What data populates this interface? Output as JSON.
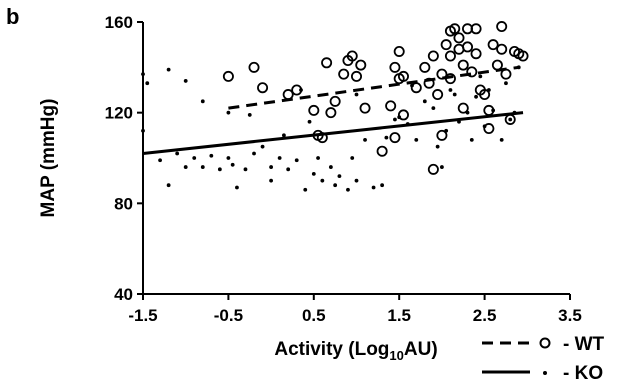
{
  "panel_label": "b",
  "chart_data": {
    "type": "scatter",
    "xlabel": "Activity (Log",
    "xlabel_sub": "10",
    "xlabel_suffix": "AU)",
    "ylabel": "MAP (mmHg)",
    "xlim": [
      -1.5,
      3.5
    ],
    "ylim": [
      40,
      160
    ],
    "xticks": [
      "-1.5",
      "-0.5",
      "0.5",
      "1.5",
      "2.5",
      "3.5"
    ],
    "yticks": [
      "40",
      "80",
      "120",
      "160"
    ],
    "grid": false,
    "legend_position": "bottom-right",
    "series": [
      {
        "name": "WT",
        "legend_label": "- WT",
        "marker": "open-circle",
        "line_style": "dashed",
        "fit_line": [
          [
            -0.5,
            122
          ],
          [
            2.9,
            140
          ]
        ],
        "points": [
          [
            -0.5,
            136
          ],
          [
            -0.2,
            140
          ],
          [
            -0.1,
            131
          ],
          [
            0.2,
            128
          ],
          [
            0.3,
            130
          ],
          [
            0.5,
            121
          ],
          [
            0.55,
            110
          ],
          [
            0.6,
            109
          ],
          [
            0.65,
            142
          ],
          [
            0.7,
            120
          ],
          [
            0.75,
            125
          ],
          [
            0.85,
            137
          ],
          [
            0.9,
            143
          ],
          [
            0.95,
            145
          ],
          [
            1.05,
            141
          ],
          [
            1.0,
            136
          ],
          [
            1.1,
            122
          ],
          [
            1.3,
            103
          ],
          [
            1.4,
            123
          ],
          [
            1.45,
            140
          ],
          [
            1.5,
            147
          ],
          [
            1.45,
            109
          ],
          [
            1.5,
            135
          ],
          [
            1.55,
            119
          ],
          [
            1.7,
            131
          ],
          [
            1.8,
            140
          ],
          [
            1.85,
            133
          ],
          [
            1.9,
            145
          ],
          [
            1.9,
            95
          ],
          [
            1.95,
            128
          ],
          [
            2.0,
            110
          ],
          [
            2.0,
            137
          ],
          [
            2.05,
            150
          ],
          [
            2.1,
            156
          ],
          [
            2.15,
            157
          ],
          [
            2.1,
            145
          ],
          [
            2.2,
            153
          ],
          [
            2.2,
            148
          ],
          [
            2.25,
            141
          ],
          [
            2.3,
            157
          ],
          [
            2.3,
            149
          ],
          [
            2.35,
            138
          ],
          [
            2.4,
            157
          ],
          [
            2.4,
            146
          ],
          [
            2.45,
            130
          ],
          [
            2.5,
            128
          ],
          [
            2.55,
            121
          ],
          [
            2.55,
            113
          ],
          [
            2.6,
            150
          ],
          [
            2.65,
            141
          ],
          [
            2.7,
            158
          ],
          [
            2.7,
            148
          ],
          [
            2.75,
            137
          ],
          [
            2.8,
            117
          ],
          [
            2.85,
            147
          ],
          [
            2.9,
            146
          ],
          [
            2.95,
            145
          ],
          [
            2.1,
            135
          ],
          [
            2.25,
            122
          ],
          [
            1.55,
            136
          ]
        ]
      },
      {
        "name": "KO",
        "legend_label": "- KO",
        "marker": "dot",
        "line_style": "solid",
        "fit_line": [
          [
            -1.5,
            102
          ],
          [
            2.95,
            120
          ]
        ],
        "points": [
          [
            -1.5,
            137
          ],
          [
            -1.45,
            133
          ],
          [
            -1.5,
            112
          ],
          [
            -1.3,
            99
          ],
          [
            -1.2,
            88
          ],
          [
            -1.2,
            139
          ],
          [
            -1.1,
            102
          ],
          [
            -1.0,
            134
          ],
          [
            -1.0,
            96
          ],
          [
            -0.9,
            100
          ],
          [
            -0.8,
            125
          ],
          [
            -0.8,
            96
          ],
          [
            -0.7,
            101
          ],
          [
            -0.6,
            95
          ],
          [
            -0.5,
            100
          ],
          [
            -0.5,
            120
          ],
          [
            -0.45,
            97
          ],
          [
            -0.4,
            87
          ],
          [
            -0.3,
            95
          ],
          [
            -0.2,
            102
          ],
          [
            -0.1,
            105
          ],
          [
            0.0,
            96
          ],
          [
            0.0,
            90
          ],
          [
            0.1,
            100
          ],
          [
            0.15,
            110
          ],
          [
            0.2,
            95
          ],
          [
            0.3,
            99
          ],
          [
            0.35,
            130
          ],
          [
            0.4,
            86
          ],
          [
            0.5,
            93
          ],
          [
            0.55,
            100
          ],
          [
            0.6,
            90
          ],
          [
            0.7,
            96
          ],
          [
            0.75,
            88
          ],
          [
            0.8,
            92
          ],
          [
            0.9,
            86
          ],
          [
            0.95,
            100
          ],
          [
            1.0,
            90
          ],
          [
            1.1,
            108
          ],
          [
            1.2,
            87
          ],
          [
            1.3,
            88
          ],
          [
            1.35,
            109
          ],
          [
            1.45,
            117
          ],
          [
            1.5,
            118
          ],
          [
            1.6,
            115
          ],
          [
            1.7,
            108
          ],
          [
            1.8,
            125
          ],
          [
            1.9,
            122
          ],
          [
            1.95,
            105
          ],
          [
            2.0,
            96
          ],
          [
            2.05,
            112
          ],
          [
            2.1,
            130
          ],
          [
            2.15,
            128
          ],
          [
            2.2,
            116
          ],
          [
            2.3,
            120
          ],
          [
            2.35,
            108
          ],
          [
            2.4,
            127
          ],
          [
            2.5,
            114
          ],
          [
            2.55,
            130
          ],
          [
            2.6,
            121
          ],
          [
            2.7,
            108
          ],
          [
            2.75,
            133
          ],
          [
            2.8,
            117
          ],
          [
            2.85,
            120
          ],
          [
            2.9,
            140
          ],
          [
            1.0,
            128
          ],
          [
            0.45,
            116
          ],
          [
            -0.25,
            119
          ],
          [
            1.65,
            132
          ],
          [
            2.45,
            136
          ]
        ]
      }
    ]
  }
}
